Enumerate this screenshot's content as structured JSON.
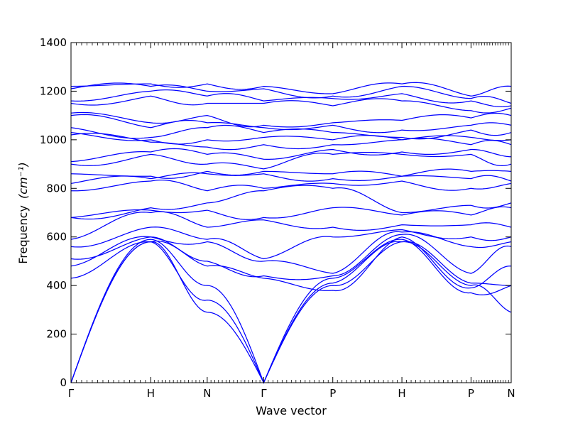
{
  "chart_data": {
    "type": "line",
    "title": "",
    "xlabel": "Wave vector",
    "ylabel": "Frequency",
    "ylabel_unit": "(cm⁻¹)",
    "ylim": [
      0,
      1400
    ],
    "yticks": [
      0,
      200,
      400,
      600,
      800,
      1000,
      1200,
      1400
    ],
    "xlim": [
      0,
      7.0
    ],
    "high_symmetry_points": [
      {
        "label": "Γ",
        "x": 0.0
      },
      {
        "label": "H",
        "x": 1.269
      },
      {
        "label": "N",
        "x": 2.166
      },
      {
        "label": "Γ",
        "x": 3.064
      },
      {
        "label": "P",
        "x": 4.163
      },
      {
        "label": "H",
        "x": 5.262
      },
      {
        "label": "P",
        "x": 6.361
      },
      {
        "label": "N",
        "x": 7.0
      }
    ],
    "line_color": "#0000ff",
    "grid": false,
    "series_nodes": [
      [
        0,
        580,
        290,
        0,
        400,
        580,
        400,
        290
      ],
      [
        0,
        580,
        340,
        0,
        410,
        580,
        410,
        400
      ],
      [
        0,
        590,
        400,
        0,
        430,
        590,
        370,
        400
      ],
      [
        430,
        580,
        480,
        430,
        380,
        600,
        390,
        480
      ],
      [
        480,
        600,
        500,
        440,
        440,
        610,
        450,
        560
      ],
      [
        510,
        600,
        580,
        500,
        450,
        620,
        560,
        580
      ],
      [
        560,
        640,
        590,
        510,
        600,
        630,
        600,
        600
      ],
      [
        590,
        700,
        640,
        670,
        640,
        650,
        650,
        640
      ],
      [
        680,
        710,
        710,
        680,
        720,
        690,
        690,
        720
      ],
      [
        680,
        720,
        740,
        790,
        800,
        700,
        730,
        740
      ],
      [
        790,
        830,
        790,
        800,
        820,
        830,
        800,
        820
      ],
      [
        820,
        840,
        860,
        860,
        840,
        850,
        840,
        830
      ],
      [
        860,
        850,
        870,
        870,
        860,
        850,
        870,
        870
      ],
      [
        900,
        940,
        900,
        880,
        940,
        940,
        940,
        900
      ],
      [
        910,
        950,
        940,
        920,
        960,
        950,
        960,
        930
      ],
      [
        1020,
        990,
        970,
        980,
        980,
        1000,
        980,
        980
      ],
      [
        1030,
        1000,
        1000,
        1010,
        1000,
        1000,
        1010,
        1000
      ],
      [
        1050,
        1010,
        1050,
        1030,
        1030,
        1010,
        1040,
        1030
      ],
      [
        1100,
        1050,
        1070,
        1050,
        1060,
        1040,
        1060,
        1060
      ],
      [
        1110,
        1070,
        1100,
        1060,
        1070,
        1080,
        1090,
        1100
      ],
      [
        1150,
        1180,
        1150,
        1150,
        1140,
        1160,
        1120,
        1130
      ],
      [
        1160,
        1200,
        1180,
        1160,
        1170,
        1190,
        1160,
        1140
      ],
      [
        1210,
        1220,
        1200,
        1210,
        1180,
        1220,
        1170,
        1150
      ],
      [
        1220,
        1230,
        1230,
        1220,
        1190,
        1230,
        1180,
        1220
      ]
    ]
  }
}
